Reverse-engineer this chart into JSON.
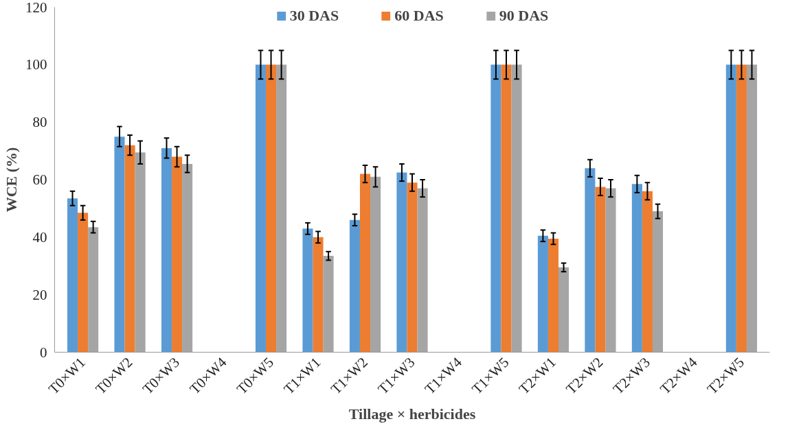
{
  "chart_data": {
    "type": "bar",
    "xlabel": "Tillage × herbicides",
    "ylabel": "WCE (%)",
    "categories": [
      "T0×W1",
      "T0×W2",
      "T0×W3",
      "T0×W4",
      "T0×W5",
      "T1×W1",
      "T1×W2",
      "T1×W3",
      "T1×W4",
      "T1×W5",
      "T2×W1",
      "T2×W2",
      "T2×W3",
      "T2×W4",
      "T2×W5"
    ],
    "series": [
      {
        "name": "30 DAS",
        "color": "#5b9bd5",
        "values": [
          53.5,
          75,
          71,
          null,
          100,
          43,
          46,
          62.5,
          null,
          100,
          40.5,
          64,
          58.5,
          null,
          100
        ],
        "errors": [
          2.5,
          3.5,
          3.5,
          null,
          5,
          2,
          2,
          3,
          null,
          5,
          2,
          3,
          3,
          null,
          5
        ]
      },
      {
        "name": "60 DAS",
        "color": "#ed7d31",
        "values": [
          48.5,
          72,
          68,
          null,
          100,
          40,
          62,
          59,
          null,
          100,
          39.5,
          57.5,
          56,
          null,
          100
        ],
        "errors": [
          2.5,
          3.5,
          3.5,
          null,
          5,
          2,
          3,
          3,
          null,
          5,
          2,
          3,
          3,
          null,
          5
        ]
      },
      {
        "name": "90 DAS",
        "color": "#a5a5a5",
        "values": [
          43.5,
          69.5,
          65.5,
          null,
          100,
          33.5,
          61,
          57,
          null,
          100,
          29.5,
          57,
          49,
          null,
          100
        ],
        "errors": [
          2,
          4,
          3,
          null,
          5,
          1.5,
          3.5,
          3,
          null,
          5,
          1.5,
          3,
          2.5,
          null,
          5
        ]
      }
    ],
    "ylim": [
      0,
      120
    ],
    "yticks": [
      0,
      20,
      40,
      60,
      80,
      100,
      120
    ],
    "grid": false,
    "legend": "top"
  }
}
